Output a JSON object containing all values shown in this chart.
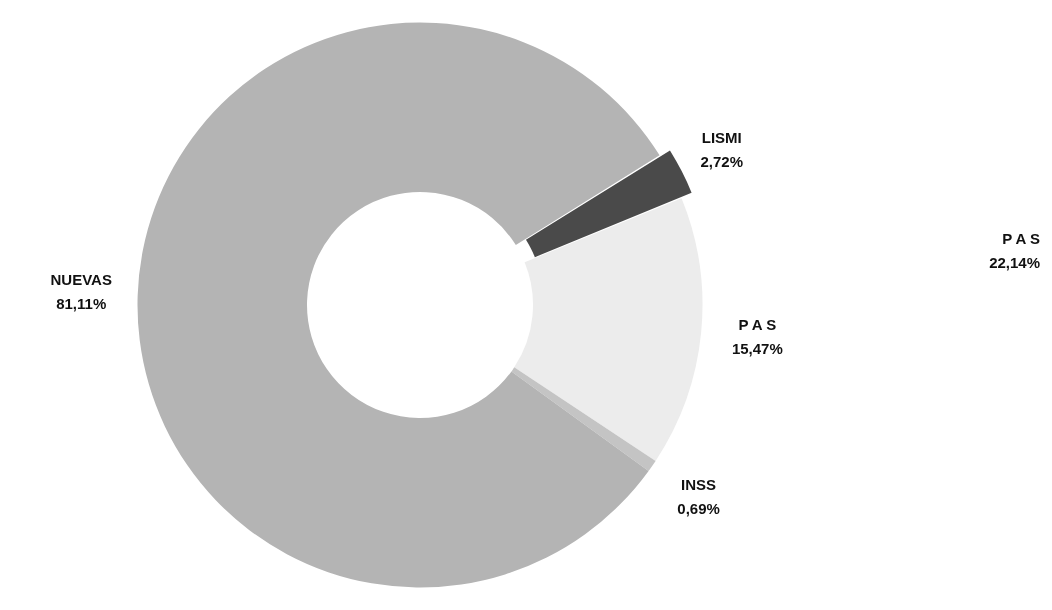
{
  "chart_data": {
    "type": "donut",
    "categories": [
      "LISMI",
      "P A S",
      "INSS",
      "NUEVAS"
    ],
    "values": [
      2.72,
      15.47,
      0.69,
      81.11
    ],
    "value_labels": [
      "2,72%",
      "15,47%",
      "0,69%",
      "81,11%"
    ],
    "colors": [
      "#4a4a4a",
      "#ececec",
      "#c4c4c4",
      "#b4b4b4"
    ],
    "annotations": [
      "P A S\n22,14%"
    ],
    "legend": false
  }
}
